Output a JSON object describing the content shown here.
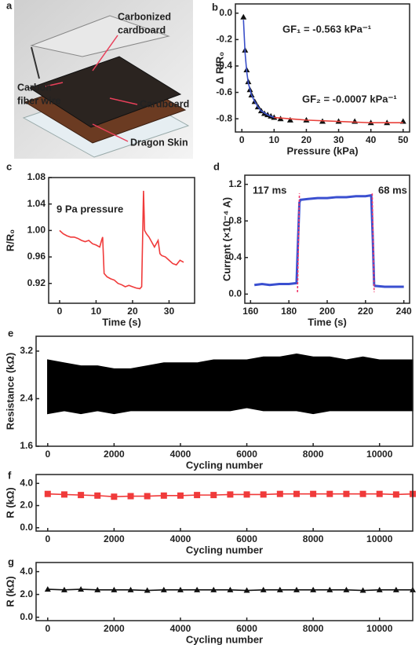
{
  "panel_labels": [
    "a",
    "b",
    "c",
    "d",
    "e",
    "f",
    "g"
  ],
  "illustration": {
    "labels": [
      [
        "Carbonized",
        "cardboard"
      ],
      [
        "Carbon",
        "fiber wire"
      ],
      [
        "Cardboard"
      ],
      [
        "Dragon Skin"
      ]
    ]
  },
  "chart_data": [
    {
      "type": "scatter",
      "xlabel": "Pressure (kPa)",
      "ylabel": "Δ R/R₀",
      "xlim": [
        -2,
        52
      ],
      "xticks": [
        0,
        10,
        20,
        30,
        40,
        50
      ],
      "ylim": [
        -0.9,
        0.07
      ],
      "yticks": [
        {
          "value": 0,
          "label": "0.0"
        },
        -0.2,
        -0.4,
        -0.6,
        -0.8
      ],
      "annotations": [
        "GF₁ = -0.563 kPa⁻¹",
        "GF₂ = -0.0007 kPa⁻¹"
      ],
      "series": [
        {
          "color": "#111111",
          "marker": "triangle",
          "line": false,
          "x": [
            0.5,
            1,
            1.5,
            2,
            2.5,
            3,
            4,
            5,
            6,
            7,
            8,
            9,
            10,
            12,
            15,
            20,
            25,
            30,
            35,
            40,
            45,
            50
          ],
          "values": [
            -0.03,
            -0.28,
            -0.43,
            -0.52,
            -0.58,
            -0.62,
            -0.67,
            -0.71,
            -0.74,
            -0.76,
            -0.77,
            -0.78,
            -0.79,
            -0.8,
            -0.81,
            -0.81,
            -0.82,
            -0.82,
            -0.82,
            -0.83,
            -0.83,
            -0.82
          ]
        },
        {
          "color": "#3a4fc8",
          "line": true,
          "x": [
            0.5,
            1,
            1.5,
            2,
            3,
            4,
            5,
            6,
            8,
            10
          ],
          "values": [
            -0.05,
            -0.3,
            -0.44,
            -0.53,
            -0.62,
            -0.67,
            -0.71,
            -0.74,
            -0.77,
            -0.79
          ]
        },
        {
          "color": "#e8403a",
          "line": true,
          "x": [
            10,
            20,
            30,
            40,
            50
          ],
          "values": [
            -0.79,
            -0.81,
            -0.82,
            -0.83,
            -0.83
          ]
        }
      ]
    },
    {
      "type": "line",
      "xlabel": "Time (s)",
      "ylabel": "R/R₀",
      "xlim": [
        -3,
        37
      ],
      "xticks": [
        0,
        10,
        20,
        30
      ],
      "ylim": [
        0.89,
        1.08
      ],
      "yticks": [
        0.92,
        0.96,
        {
          "value": 1,
          "label": "1.00"
        },
        1.04,
        1.08
      ],
      "annotations": [
        "9 Pa pressure"
      ],
      "x": [
        0,
        1,
        2,
        3,
        4,
        5,
        6,
        7,
        8,
        9,
        10,
        11,
        11.5,
        11.8,
        12.2,
        13,
        14,
        15,
        16,
        17,
        18,
        19,
        20,
        21,
        22,
        22.5,
        23,
        23.3,
        23.8,
        24.5,
        25,
        26,
        26.5,
        27,
        27.5,
        28,
        29,
        30,
        31,
        32,
        33,
        34
      ],
      "series": [
        {
          "color": "#f03a3a",
          "line": true,
          "values": [
            1.0,
            0.995,
            0.992,
            0.99,
            0.99,
            0.988,
            0.985,
            0.983,
            0.985,
            0.98,
            0.978,
            0.975,
            0.985,
            0.99,
            0.935,
            0.93,
            0.927,
            0.925,
            0.92,
            0.918,
            0.915,
            0.917,
            0.915,
            0.913,
            0.912,
            0.915,
            1.06,
            1.0,
            0.995,
            0.99,
            0.985,
            0.975,
            0.98,
            0.985,
            0.965,
            0.962,
            0.96,
            0.955,
            0.95,
            0.948,
            0.955,
            0.952
          ]
        }
      ]
    },
    {
      "type": "line",
      "xlabel": "Time (s)",
      "ylabel": "Current (×10⁻⁴ A)",
      "xlim": [
        157,
        243
      ],
      "xticks": [
        160,
        180,
        200,
        220,
        240
      ],
      "ylim": [
        -0.1,
        1.3
      ],
      "yticks": [
        {
          "value": 0,
          "label": "0.0"
        },
        0.4,
        0.8,
        1.2
      ],
      "annotations": [
        "117 ms",
        "68 ms"
      ],
      "series": [
        {
          "color": "#3a4fd0",
          "line": true,
          "width": 3,
          "x": [
            162,
            166,
            170,
            175,
            180,
            184,
            184.8,
            185.5,
            186,
            190,
            195,
            200,
            205,
            210,
            215,
            220,
            223,
            223.8,
            224.5,
            225,
            230,
            235,
            240
          ],
          "values": [
            0.1,
            0.11,
            0.1,
            0.11,
            0.11,
            0.12,
            0.6,
            1.0,
            1.03,
            1.04,
            1.05,
            1.05,
            1.06,
            1.06,
            1.07,
            1.07,
            1.08,
            0.6,
            0.1,
            0.09,
            0.08,
            0.08,
            0.08
          ]
        },
        {
          "color": "#f03a6a",
          "line": true,
          "dash": true,
          "x": [
            184.5,
            185.5
          ],
          "values": [
            0.02,
            1.1
          ]
        },
        {
          "color": "#f03a6a",
          "line": true,
          "dash": true,
          "x": [
            223.5,
            224.5
          ],
          "values": [
            1.1,
            0.02
          ]
        }
      ]
    },
    {
      "type": "area",
      "xlabel": "Cycling number",
      "ylabel": "Resistance (kΩ)",
      "xlim": [
        -350,
        11000
      ],
      "xticks": [
        0,
        2000,
        4000,
        6000,
        8000,
        10000
      ],
      "ylim": [
        1.6,
        3.45
      ],
      "yticks": [
        1.6,
        2.4,
        3.2
      ],
      "x": [
        0,
        500,
        1000,
        1500,
        2000,
        2500,
        3000,
        3500,
        4000,
        4500,
        5000,
        5500,
        6000,
        6500,
        7000,
        7500,
        8000,
        8500,
        9000,
        9500,
        10000,
        10500,
        11000
      ],
      "color": "#000000",
      "upper": [
        3.05,
        3.0,
        2.95,
        2.95,
        2.9,
        2.9,
        2.95,
        3.0,
        3.0,
        3.0,
        3.05,
        3.05,
        3.05,
        3.1,
        3.1,
        3.15,
        3.1,
        3.1,
        3.05,
        3.1,
        3.05,
        3.05,
        3.05
      ],
      "lower": [
        2.15,
        2.2,
        2.15,
        2.2,
        2.15,
        2.2,
        2.2,
        2.2,
        2.2,
        2.2,
        2.2,
        2.2,
        2.25,
        2.2,
        2.2,
        2.2,
        2.15,
        2.2,
        2.2,
        2.2,
        2.2,
        2.2,
        2.2
      ]
    },
    {
      "type": "line",
      "xlabel": "Cycling number",
      "ylabel": "R (kΩ)",
      "xlim": [
        -350,
        11000
      ],
      "xticks": [
        0,
        2000,
        4000,
        6000,
        8000,
        10000
      ],
      "ylim": [
        -0.3,
        4.8
      ],
      "yticks": [
        {
          "value": 0,
          "label": "0.0"
        },
        {
          "value": 2,
          "label": "2.0"
        },
        {
          "value": 4,
          "label": "4.0"
        }
      ],
      "x": [
        0,
        500,
        1000,
        1500,
        2000,
        2500,
        3000,
        3500,
        4000,
        4500,
        5000,
        5500,
        6000,
        6500,
        7000,
        7500,
        8000,
        8500,
        9000,
        9500,
        10000,
        10500,
        11000
      ],
      "series": [
        {
          "color": "#f03a3a",
          "marker": "square",
          "line": true,
          "values": [
            3.05,
            3.0,
            2.95,
            2.9,
            2.8,
            2.85,
            2.85,
            2.9,
            2.9,
            2.95,
            2.95,
            3.0,
            3.0,
            3.0,
            3.05,
            3.05,
            3.05,
            3.05,
            3.05,
            3.05,
            3.05,
            3.0,
            3.05
          ]
        }
      ]
    },
    {
      "type": "line",
      "xlabel": "Cycling number",
      "ylabel": "R (kΩ)",
      "xlim": [
        -350,
        11000
      ],
      "xticks": [
        0,
        2000,
        4000,
        6000,
        8000,
        10000
      ],
      "ylim": [
        -0.3,
        4.8
      ],
      "yticks": [
        {
          "value": 0,
          "label": "0.0"
        },
        {
          "value": 2,
          "label": "2.0"
        },
        {
          "value": 4,
          "label": "4.0"
        }
      ],
      "x": [
        0,
        500,
        1000,
        1500,
        2000,
        2500,
        3000,
        3500,
        4000,
        4500,
        5000,
        5500,
        6000,
        6500,
        7000,
        7500,
        8000,
        8500,
        9000,
        9500,
        10000,
        10500,
        11000
      ],
      "series": [
        {
          "color": "#111111",
          "marker": "triangle",
          "line": true,
          "values": [
            2.45,
            2.4,
            2.45,
            2.4,
            2.4,
            2.4,
            2.35,
            2.4,
            2.4,
            2.4,
            2.4,
            2.4,
            2.35,
            2.4,
            2.4,
            2.4,
            2.4,
            2.4,
            2.4,
            2.35,
            2.4,
            2.4,
            2.4
          ]
        }
      ]
    }
  ]
}
